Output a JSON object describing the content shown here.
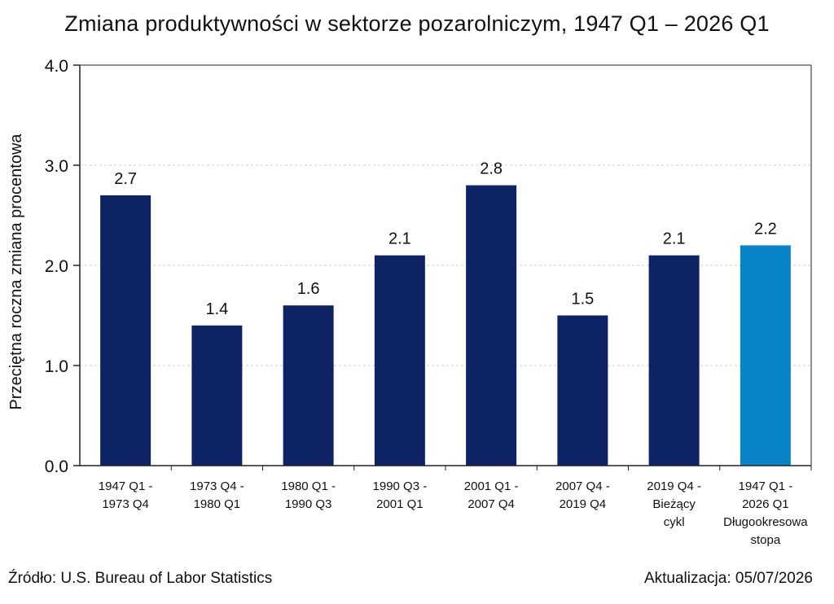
{
  "chart_data": {
    "type": "bar",
    "title": "Zmiana produktywności w sektorze pozarolniczym, 1947 Q1 – 2026 Q1",
    "xlabel": "",
    "ylabel": "Przeciętna roczna zmiana procentowa",
    "ylim": [
      0,
      4
    ],
    "yticks": [
      "0.0",
      "1.0",
      "2.0",
      "3.0",
      "4.0"
    ],
    "grid": true,
    "categories": [
      [
        "1947 Q1 -",
        "1973 Q4"
      ],
      [
        "1973 Q4 -",
        "1980 Q1"
      ],
      [
        "1980 Q1 -",
        "1990 Q3"
      ],
      [
        "1990 Q3 -",
        "2001 Q1"
      ],
      [
        "2001 Q1 -",
        "2007 Q4"
      ],
      [
        "2007 Q4 -",
        "2019 Q4"
      ],
      [
        "2019 Q4 -",
        "Bieżący",
        "cykl"
      ],
      [
        "1947 Q1 -",
        "2026 Q1",
        "Długookresowa",
        "stopa"
      ]
    ],
    "values": [
      2.7,
      1.4,
      1.6,
      2.1,
      2.8,
      1.5,
      2.1,
      2.2
    ],
    "value_labels": [
      "2.7",
      "1.4",
      "1.6",
      "2.1",
      "2.8",
      "1.5",
      "2.1",
      "2.2"
    ],
    "colors": [
      "#0d2366",
      "#0d2366",
      "#0d2366",
      "#0d2366",
      "#0d2366",
      "#0d2366",
      "#0d2366",
      "#0a84c8"
    ]
  },
  "footer": {
    "source": "Źródło: U.S. Bureau of Labor Statistics",
    "updated": "Aktualizacja: 05/07/2026"
  }
}
